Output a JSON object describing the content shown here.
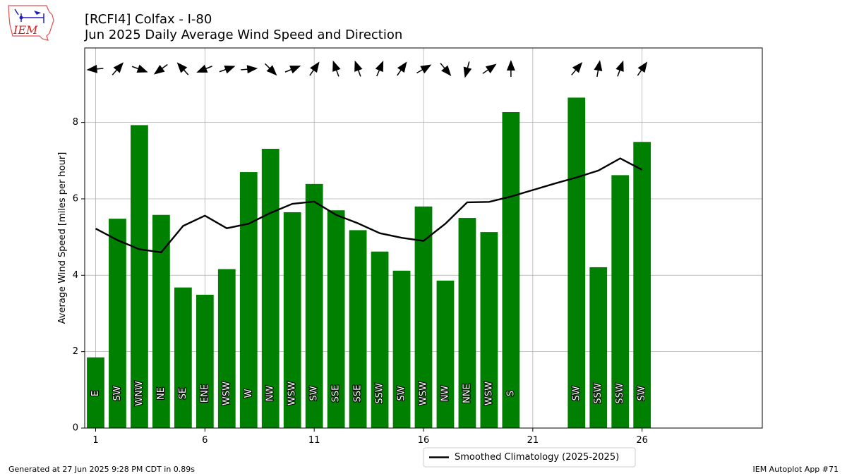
{
  "logo_text": "IEM",
  "title_line1": "[RCFI4] Colfax - I-80",
  "title_line2": "Jun 2025 Daily Average Wind Speed and Direction",
  "footer_left": "Generated at 27 Jun 2025 9:28 PM CDT in 0.89s",
  "footer_right": "IEM Autoplot App #71",
  "colors": {
    "bar": "#008000",
    "line": "#000000",
    "grid": "#b0b0b0"
  },
  "chart_data": {
    "type": "bar",
    "title": "[RCFI4] Colfax - I-80",
    "subtitle": "Jun 2025 Daily Average Wind Speed and Direction",
    "xlabel": "",
    "ylabel": "Average Wind Speed [miles per hour]",
    "xlim": [
      0.5,
      31.5
    ],
    "ylim": [
      0,
      9.95
    ],
    "xticks": [
      1,
      6,
      11,
      16,
      21,
      26
    ],
    "yticks": [
      0,
      2,
      4,
      6,
      8
    ],
    "grid": true,
    "legend_position": "bottom-center",
    "days": [
      1,
      2,
      3,
      4,
      5,
      6,
      7,
      8,
      9,
      10,
      11,
      12,
      13,
      14,
      15,
      16,
      17,
      18,
      19,
      20,
      23,
      24,
      25,
      26
    ],
    "values": [
      1.85,
      5.48,
      7.93,
      5.58,
      3.68,
      3.49,
      4.16,
      6.7,
      7.31,
      5.65,
      6.39,
      5.7,
      5.18,
      4.62,
      4.12,
      5.8,
      3.86,
      5.5,
      5.13,
      8.27,
      8.65,
      4.21,
      6.62,
      7.49
    ],
    "directions": [
      "E",
      "SW",
      "WNW",
      "NE",
      "SE",
      "ENE",
      "WSW",
      "W",
      "NW",
      "WSW",
      "SW",
      "SSE",
      "SSE",
      "SSW",
      "SW",
      "WSW",
      "NW",
      "NNE",
      "WSW",
      "S",
      "SW",
      "SSW",
      "SSW",
      "SW"
    ],
    "direction_degrees": [
      85,
      221,
      290,
      54,
      138,
      68,
      250,
      265,
      315,
      248,
      215,
      160,
      160,
      203,
      215,
      240,
      320,
      15,
      235,
      180,
      220,
      190,
      200,
      215
    ],
    "series": [
      {
        "name": "Smoothed Climatology (2025-2025)",
        "x": [
          1,
          2,
          3,
          4,
          5,
          6,
          7,
          8,
          9,
          10,
          11,
          12,
          13,
          14,
          15,
          16,
          17,
          18,
          19,
          20,
          21,
          22,
          23,
          24,
          25,
          26
        ],
        "values": [
          5.22,
          4.92,
          4.68,
          4.6,
          5.29,
          5.56,
          5.23,
          5.35,
          5.63,
          5.87,
          5.93,
          5.58,
          5.36,
          5.1,
          4.98,
          4.9,
          5.35,
          5.91,
          5.92,
          6.06,
          6.23,
          6.4,
          6.56,
          6.74,
          7.06,
          6.76
        ]
      }
    ]
  }
}
